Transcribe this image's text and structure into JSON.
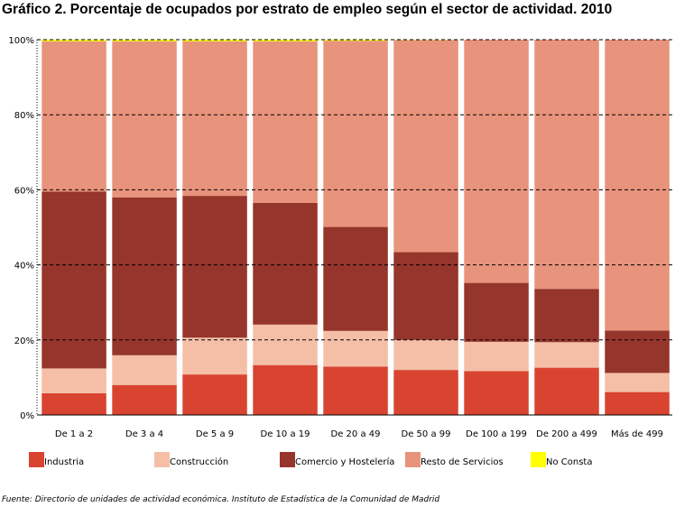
{
  "title": "Gráfico 2. Porcentaje de ocupados por estrato de empleo según el sector de actividad. 2010",
  "source": "Fuente: Directorio de unidades de actividad económica. Instituto de Estadística de la Comunidad de Madrid",
  "colors": {
    "Industria": "#d94430",
    "Construcción": "#f4bfa6",
    "Comercio y Hostelería": "#96352b",
    "Resto de Servicios": "#e8937b",
    "No Consta": "#ffff00"
  },
  "chart_data": {
    "type": "bar",
    "stacked": true,
    "percent": true,
    "ylim": [
      0,
      100
    ],
    "y_ticks": [
      "0%",
      "20%",
      "40%",
      "60%",
      "80%",
      "100%"
    ],
    "grid": "horizontal dashed",
    "legend_position": "bottom",
    "categories": [
      "De 1 a 2",
      "De 3 a 4",
      "De 5 a 9",
      "De 10 a 19",
      "De 20 a 49",
      "De 50 a 99",
      "De 100 a 199",
      "De 200 a 499",
      "Más de 499"
    ],
    "series": [
      {
        "name": "Industria",
        "values": [
          5.8,
          8.0,
          10.8,
          13.3,
          12.9,
          12.0,
          11.7,
          12.6,
          6.1
        ]
      },
      {
        "name": "Construcción",
        "values": [
          6.6,
          7.9,
          9.8,
          10.8,
          9.5,
          8.0,
          7.8,
          6.8,
          5.1
        ]
      },
      {
        "name": "Comercio y Hostelería",
        "values": [
          47.1,
          42.1,
          37.8,
          32.4,
          27.7,
          23.4,
          15.7,
          14.2,
          11.3
        ]
      },
      {
        "name": "Resto de Servicios",
        "values": [
          40.1,
          41.6,
          41.2,
          43.1,
          49.6,
          56.5,
          64.8,
          66.4,
          77.5
        ]
      },
      {
        "name": "No Consta",
        "values": [
          0.4,
          0.4,
          0.4,
          0.4,
          0.3,
          0.1,
          0.0,
          0.0,
          0.0
        ]
      }
    ]
  }
}
